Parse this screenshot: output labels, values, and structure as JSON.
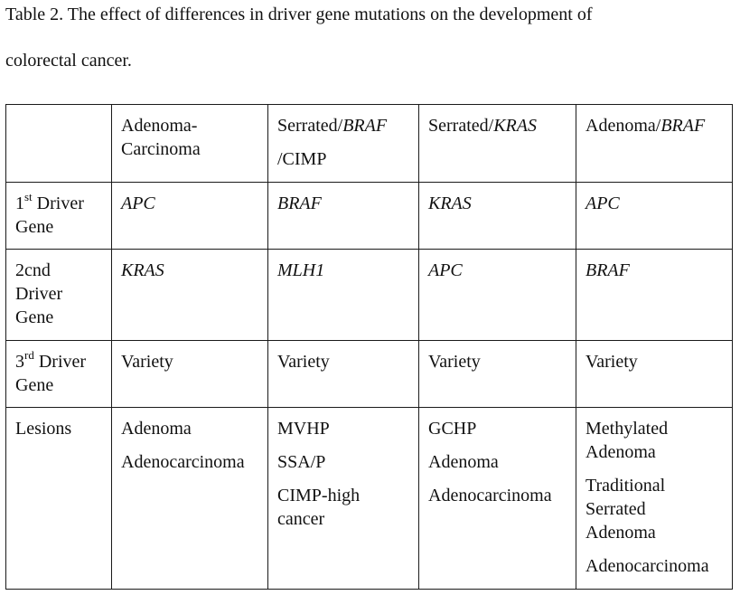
{
  "caption": {
    "line1": "Table 2. The effect of differences in driver gene mutations on the development of",
    "line2": "colorectal cancer."
  },
  "header": {
    "col1": "",
    "col2_line1": "Adenoma-",
    "col2_line2": "Carcinoma",
    "col3_a": "Serrated/",
    "col3_b": "BRAF",
    "col3_c": "/CIMP",
    "col4_a": "Serrated/",
    "col4_b": "KRAS",
    "col5_a": "Adenoma/",
    "col5_b": "BRAF"
  },
  "rows": {
    "first": {
      "label_num": "1",
      "label_sup": "st",
      "label_rest": " Driver",
      "label_line2": "Gene",
      "cells": [
        "APC",
        "BRAF",
        "KRAS",
        "APC"
      ]
    },
    "second": {
      "label_line1": "2cnd",
      "label_line2": "Driver",
      "label_line3": "Gene",
      "cells": [
        "KRAS",
        "MLH1",
        "APC",
        "BRAF"
      ]
    },
    "third": {
      "label_num": "3",
      "label_sup": "rd",
      "label_rest": " Driver",
      "label_line2": "Gene",
      "cells": [
        "Variety",
        "Variety",
        "Variety",
        "Variety"
      ]
    },
    "lesions": {
      "label": "Lesions",
      "col2": [
        "Adenoma",
        "Adenocarcinoma"
      ],
      "col3": [
        "MVHP",
        "SSA/P",
        "CIMP-high cancer"
      ],
      "col4": [
        "GCHP",
        "Adenoma",
        "Adenocarcinoma"
      ],
      "col5": [
        "Methylated Adenoma",
        "Traditional Serrated Adenoma",
        "Adenocarcinoma"
      ]
    }
  }
}
